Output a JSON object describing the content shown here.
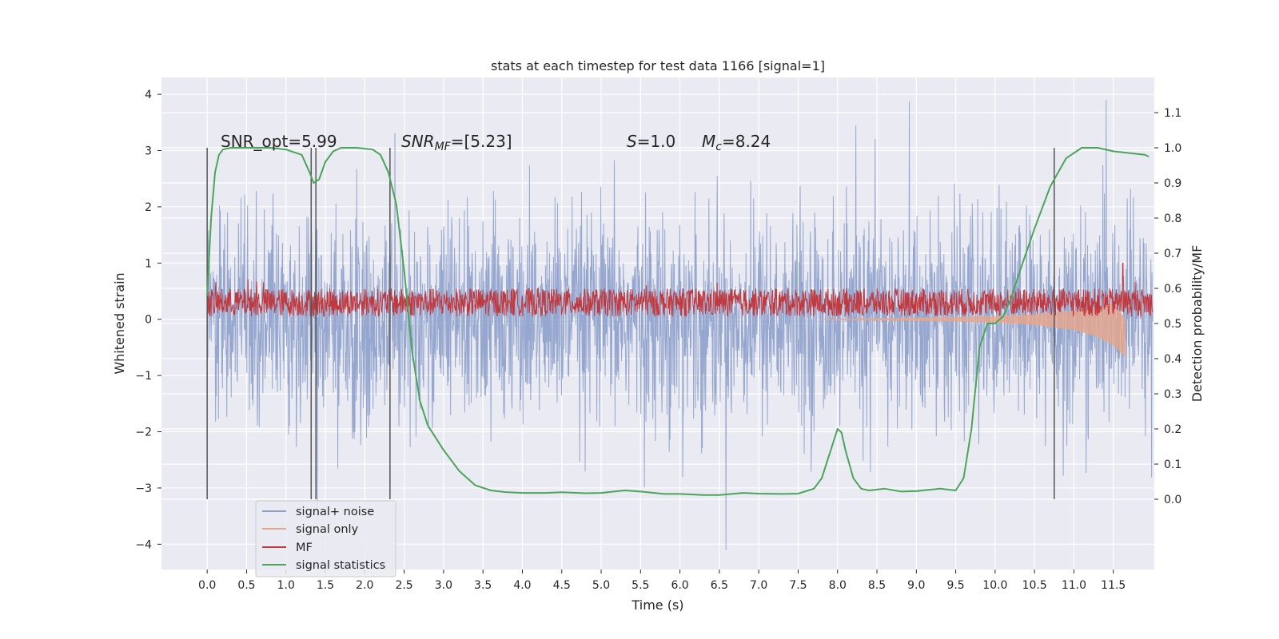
{
  "chart_data": {
    "type": "line",
    "title": "stats at each timestep for test data 1166 [signal=1]",
    "xlabel": "Time (s)",
    "ylabel_left": "Whitened strain",
    "ylabel_right": "Detection probability/MF",
    "xlim": [
      -0.58,
      12.02
    ],
    "ylim_left": [
      -4.45,
      4.3
    ],
    "ylim_right": [
      -0.2,
      1.2
    ],
    "x_ticks": [
      "0.0",
      "0.5",
      "1.0",
      "1.5",
      "2.0",
      "2.5",
      "3.0",
      "3.5",
      "4.0",
      "4.5",
      "5.0",
      "5.5",
      "6.0",
      "6.5",
      "7.0",
      "7.5",
      "8.0",
      "8.5",
      "9.0",
      "9.5",
      "10.0",
      "10.5",
      "11.0",
      "11.5"
    ],
    "y_ticks_left": [
      "4",
      "3",
      "2",
      "1",
      "0",
      "−1",
      "−2",
      "−3",
      "−4"
    ],
    "y_ticks_right": [
      "1.1",
      "1.0",
      "0.9",
      "0.8",
      "0.7",
      "0.6",
      "0.5",
      "0.4",
      "0.3",
      "0.2",
      "0.1",
      "0.0"
    ],
    "grid": true,
    "legend_position": "lower-left",
    "legend": [
      {
        "label": "signal+ noise",
        "color": "#8da0cb"
      },
      {
        "label": "signal only",
        "color": "#e8a68a"
      },
      {
        "label": "MF",
        "color": "#c0393f"
      },
      {
        "label": "signal statistics",
        "color": "#4aa55a"
      }
    ],
    "annotations": {
      "snr_opt": "SNR_opt=5.99",
      "snr_mf_main": "SNR",
      "snr_mf_sub": "MF",
      "snr_mf_value": "=[5.23]",
      "s_sym": "S",
      "s_value": "=1.0",
      "mc_sym": "M",
      "mc_sub": "c",
      "mc_value": "=8.24"
    },
    "vertical_lines_x": [
      0.0,
      1.32,
      1.38,
      2.32,
      10.75
    ],
    "noise_series": {
      "name": "signal+ noise",
      "x_range": [
        0.0,
        12.0
      ],
      "typical_envelope": [
        -2.2,
        2.2
      ],
      "extremes": [
        -4.1,
        3.9
      ]
    },
    "signal_only_series": {
      "name": "signal only",
      "x": [
        7.8,
        8.5,
        9.0,
        9.5,
        10.0,
        10.5,
        11.0,
        11.3,
        11.5,
        11.65
      ],
      "upper": [
        0.0,
        0.01,
        0.02,
        0.03,
        0.05,
        0.08,
        0.14,
        0.2,
        0.28,
        0.0
      ],
      "lower": [
        0.0,
        -0.01,
        -0.02,
        -0.03,
        -0.05,
        -0.09,
        -0.18,
        -0.3,
        -0.45,
        -0.65
      ]
    },
    "mf_series": {
      "name": "MF",
      "x_range": [
        0.0,
        12.0
      ],
      "band": [
        0.05,
        0.55
      ],
      "spike": {
        "x": 11.62,
        "y": 1.0
      }
    },
    "signal_statistics": {
      "name": "signal statistics",
      "x": [
        0.0,
        0.05,
        0.1,
        0.15,
        0.2,
        0.3,
        0.5,
        0.8,
        1.0,
        1.2,
        1.3,
        1.35,
        1.42,
        1.5,
        1.6,
        1.7,
        1.9,
        2.1,
        2.2,
        2.3,
        2.4,
        2.5,
        2.6,
        2.7,
        2.8,
        3.0,
        3.2,
        3.4,
        3.6,
        3.8,
        4.0,
        4.3,
        4.5,
        4.8,
        5.0,
        5.3,
        5.5,
        5.8,
        6.0,
        6.3,
        6.5,
        6.8,
        7.0,
        7.3,
        7.5,
        7.7,
        7.8,
        7.9,
        8.0,
        8.05,
        8.1,
        8.2,
        8.3,
        8.4,
        8.6,
        8.8,
        9.0,
        9.3,
        9.5,
        9.6,
        9.7,
        9.8,
        9.9,
        10.0,
        10.1,
        10.2,
        10.3,
        10.5,
        10.7,
        10.9,
        11.1,
        11.3,
        11.5,
        11.7,
        11.9,
        11.95
      ],
      "y": [
        0.58,
        0.8,
        0.93,
        0.98,
        0.995,
        1.0,
        1.0,
        1.0,
        0.995,
        0.98,
        0.93,
        0.9,
        0.91,
        0.96,
        0.99,
        1.0,
        1.0,
        0.995,
        0.98,
        0.93,
        0.84,
        0.65,
        0.42,
        0.28,
        0.21,
        0.14,
        0.08,
        0.04,
        0.025,
        0.02,
        0.018,
        0.018,
        0.02,
        0.017,
        0.018,
        0.025,
        0.022,
        0.015,
        0.015,
        0.012,
        0.012,
        0.018,
        0.016,
        0.015,
        0.016,
        0.03,
        0.06,
        0.13,
        0.2,
        0.19,
        0.14,
        0.06,
        0.03,
        0.025,
        0.03,
        0.022,
        0.023,
        0.03,
        0.025,
        0.06,
        0.2,
        0.43,
        0.5,
        0.5,
        0.52,
        0.57,
        0.64,
        0.77,
        0.89,
        0.97,
        1.0,
        1.0,
        0.99,
        0.985,
        0.98,
        0.975
      ]
    }
  }
}
